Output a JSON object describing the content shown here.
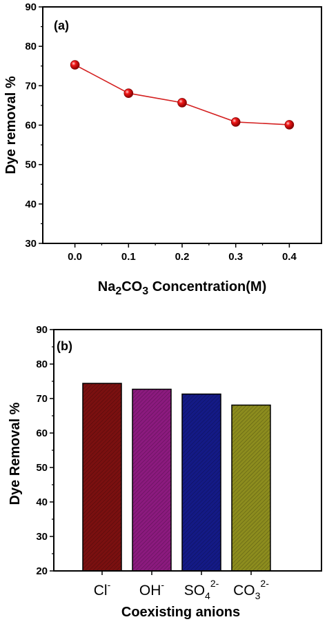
{
  "chart_data": [
    {
      "type": "line",
      "panel_label": "(a)",
      "xlabel": {
        "prefix": "Na",
        "sub1": "2",
        "mid": "CO",
        "sub2": "3",
        "suffix": " Concentration(M)"
      },
      "ylabel": "Dye removal %",
      "x": [
        0.0,
        0.1,
        0.2,
        0.3,
        0.4
      ],
      "x_tick_labels": [
        "0.0",
        "0.1",
        "0.2",
        "0.3",
        "0.4"
      ],
      "values": [
        75.3,
        68.1,
        65.7,
        60.8,
        60.1
      ],
      "xlim": [
        -0.06,
        0.46
      ],
      "ylim": [
        30,
        90
      ],
      "y_ticks": [
        30,
        40,
        50,
        60,
        70,
        80,
        90
      ],
      "line_color": "#d42020",
      "marker_color": "#e8000b"
    },
    {
      "type": "bar",
      "panel_label": "(b)",
      "xlabel": "Coexisting anions",
      "ylabel": "Dye Removal %",
      "categories": [
        {
          "base": "Cl",
          "sup": "-",
          "sub": ""
        },
        {
          "base": "OH",
          "sup": "-",
          "sub": ""
        },
        {
          "base": "SO",
          "sup": "2-",
          "sub": "4"
        },
        {
          "base": "CO",
          "sup": "2-",
          "sub": "3"
        }
      ],
      "values": [
        74.4,
        72.7,
        71.3,
        68.1
      ],
      "ylim": [
        20,
        90
      ],
      "y_ticks": [
        20,
        30,
        40,
        50,
        60,
        70,
        80,
        90
      ],
      "bar_colors": [
        "#7a1010",
        "#8b1a7e",
        "#141a86",
        "#8c8c1e"
      ]
    }
  ]
}
